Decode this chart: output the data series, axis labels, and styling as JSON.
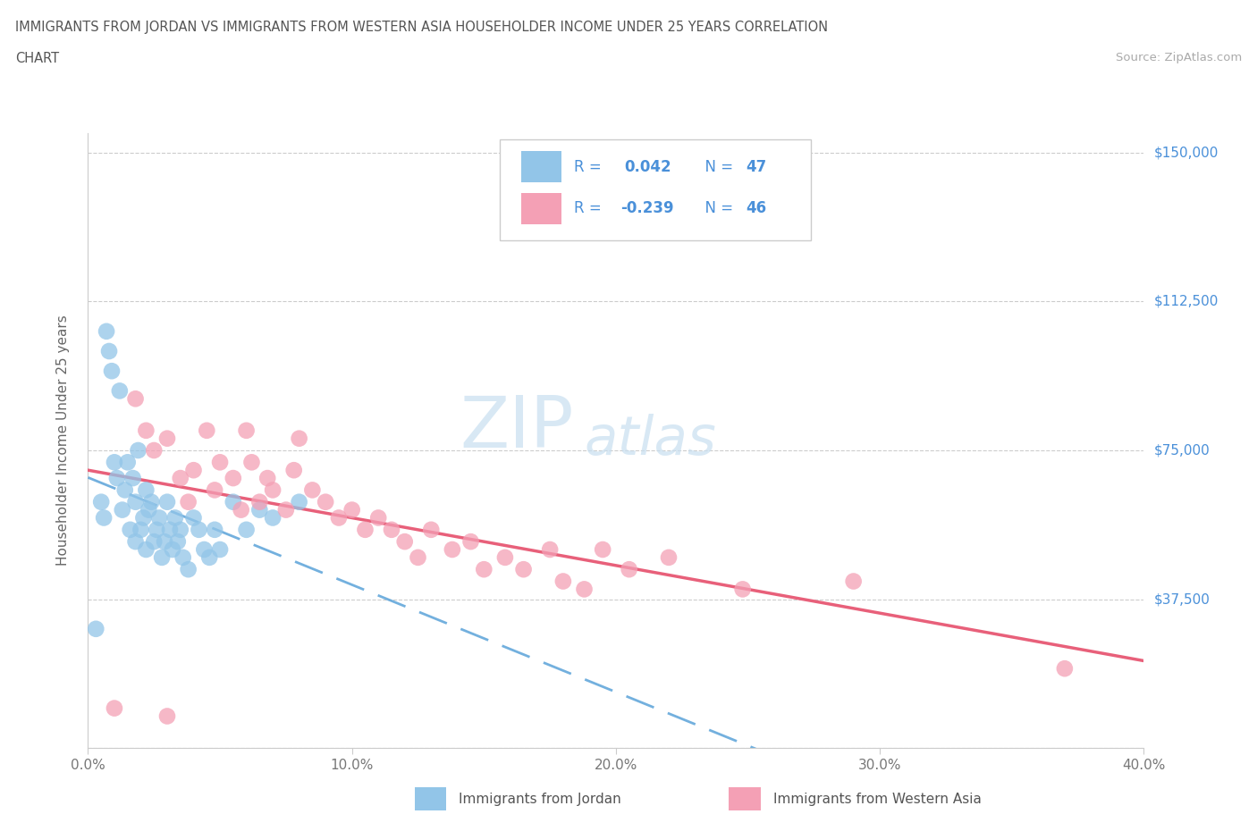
{
  "title_line1": "IMMIGRANTS FROM JORDAN VS IMMIGRANTS FROM WESTERN ASIA HOUSEHOLDER INCOME UNDER 25 YEARS CORRELATION",
  "title_line2": "CHART",
  "source_text": "Source: ZipAtlas.com",
  "ylabel": "Householder Income Under 25 years",
  "xlim": [
    0.0,
    0.4
  ],
  "ylim": [
    0,
    155000
  ],
  "yticks": [
    0,
    37500,
    75000,
    112500,
    150000
  ],
  "ytick_labels": [
    "",
    "$37,500",
    "$75,000",
    "$112,500",
    "$150,000"
  ],
  "xticks": [
    0.0,
    0.1,
    0.2,
    0.3,
    0.4
  ],
  "xtick_labels": [
    "0.0%",
    "10.0%",
    "20.0%",
    "30.0%",
    "40.0%"
  ],
  "jordan_color": "#92C5E8",
  "western_asia_color": "#F4A0B5",
  "jordan_line_color": "#5BA3D9",
  "western_asia_line_color": "#E8607A",
  "watermark_top": "ZIP",
  "watermark_bot": "atlas",
  "legend_blue_color": "#4A90D9",
  "jordan_R": "0.042",
  "jordan_N": "47",
  "western_R": "-0.239",
  "western_N": "46",
  "jordan_x": [
    0.003,
    0.005,
    0.006,
    0.007,
    0.008,
    0.009,
    0.01,
    0.011,
    0.012,
    0.013,
    0.014,
    0.015,
    0.016,
    0.017,
    0.018,
    0.018,
    0.019,
    0.02,
    0.021,
    0.022,
    0.022,
    0.023,
    0.024,
    0.025,
    0.026,
    0.027,
    0.028,
    0.029,
    0.03,
    0.031,
    0.032,
    0.033,
    0.034,
    0.035,
    0.036,
    0.038,
    0.04,
    0.042,
    0.044,
    0.046,
    0.048,
    0.05,
    0.055,
    0.06,
    0.065,
    0.07,
    0.08
  ],
  "jordan_y": [
    30000,
    62000,
    58000,
    105000,
    100000,
    95000,
    72000,
    68000,
    90000,
    60000,
    65000,
    72000,
    55000,
    68000,
    62000,
    52000,
    75000,
    55000,
    58000,
    65000,
    50000,
    60000,
    62000,
    52000,
    55000,
    58000,
    48000,
    52000,
    62000,
    55000,
    50000,
    58000,
    52000,
    55000,
    48000,
    45000,
    58000,
    55000,
    50000,
    48000,
    55000,
    50000,
    62000,
    55000,
    60000,
    58000,
    62000
  ],
  "western_asia_x": [
    0.01,
    0.018,
    0.022,
    0.025,
    0.03,
    0.035,
    0.038,
    0.04,
    0.045,
    0.048,
    0.05,
    0.055,
    0.058,
    0.06,
    0.062,
    0.065,
    0.068,
    0.07,
    0.075,
    0.078,
    0.08,
    0.085,
    0.09,
    0.095,
    0.1,
    0.105,
    0.11,
    0.115,
    0.12,
    0.125,
    0.13,
    0.138,
    0.145,
    0.15,
    0.158,
    0.165,
    0.175,
    0.18,
    0.188,
    0.195,
    0.205,
    0.22,
    0.248,
    0.29,
    0.37,
    0.03
  ],
  "western_asia_y": [
    10000,
    88000,
    80000,
    75000,
    78000,
    68000,
    62000,
    70000,
    80000,
    65000,
    72000,
    68000,
    60000,
    80000,
    72000,
    62000,
    68000,
    65000,
    60000,
    70000,
    78000,
    65000,
    62000,
    58000,
    60000,
    55000,
    58000,
    55000,
    52000,
    48000,
    55000,
    50000,
    52000,
    45000,
    48000,
    45000,
    50000,
    42000,
    40000,
    50000,
    45000,
    48000,
    40000,
    42000,
    20000,
    8000
  ]
}
